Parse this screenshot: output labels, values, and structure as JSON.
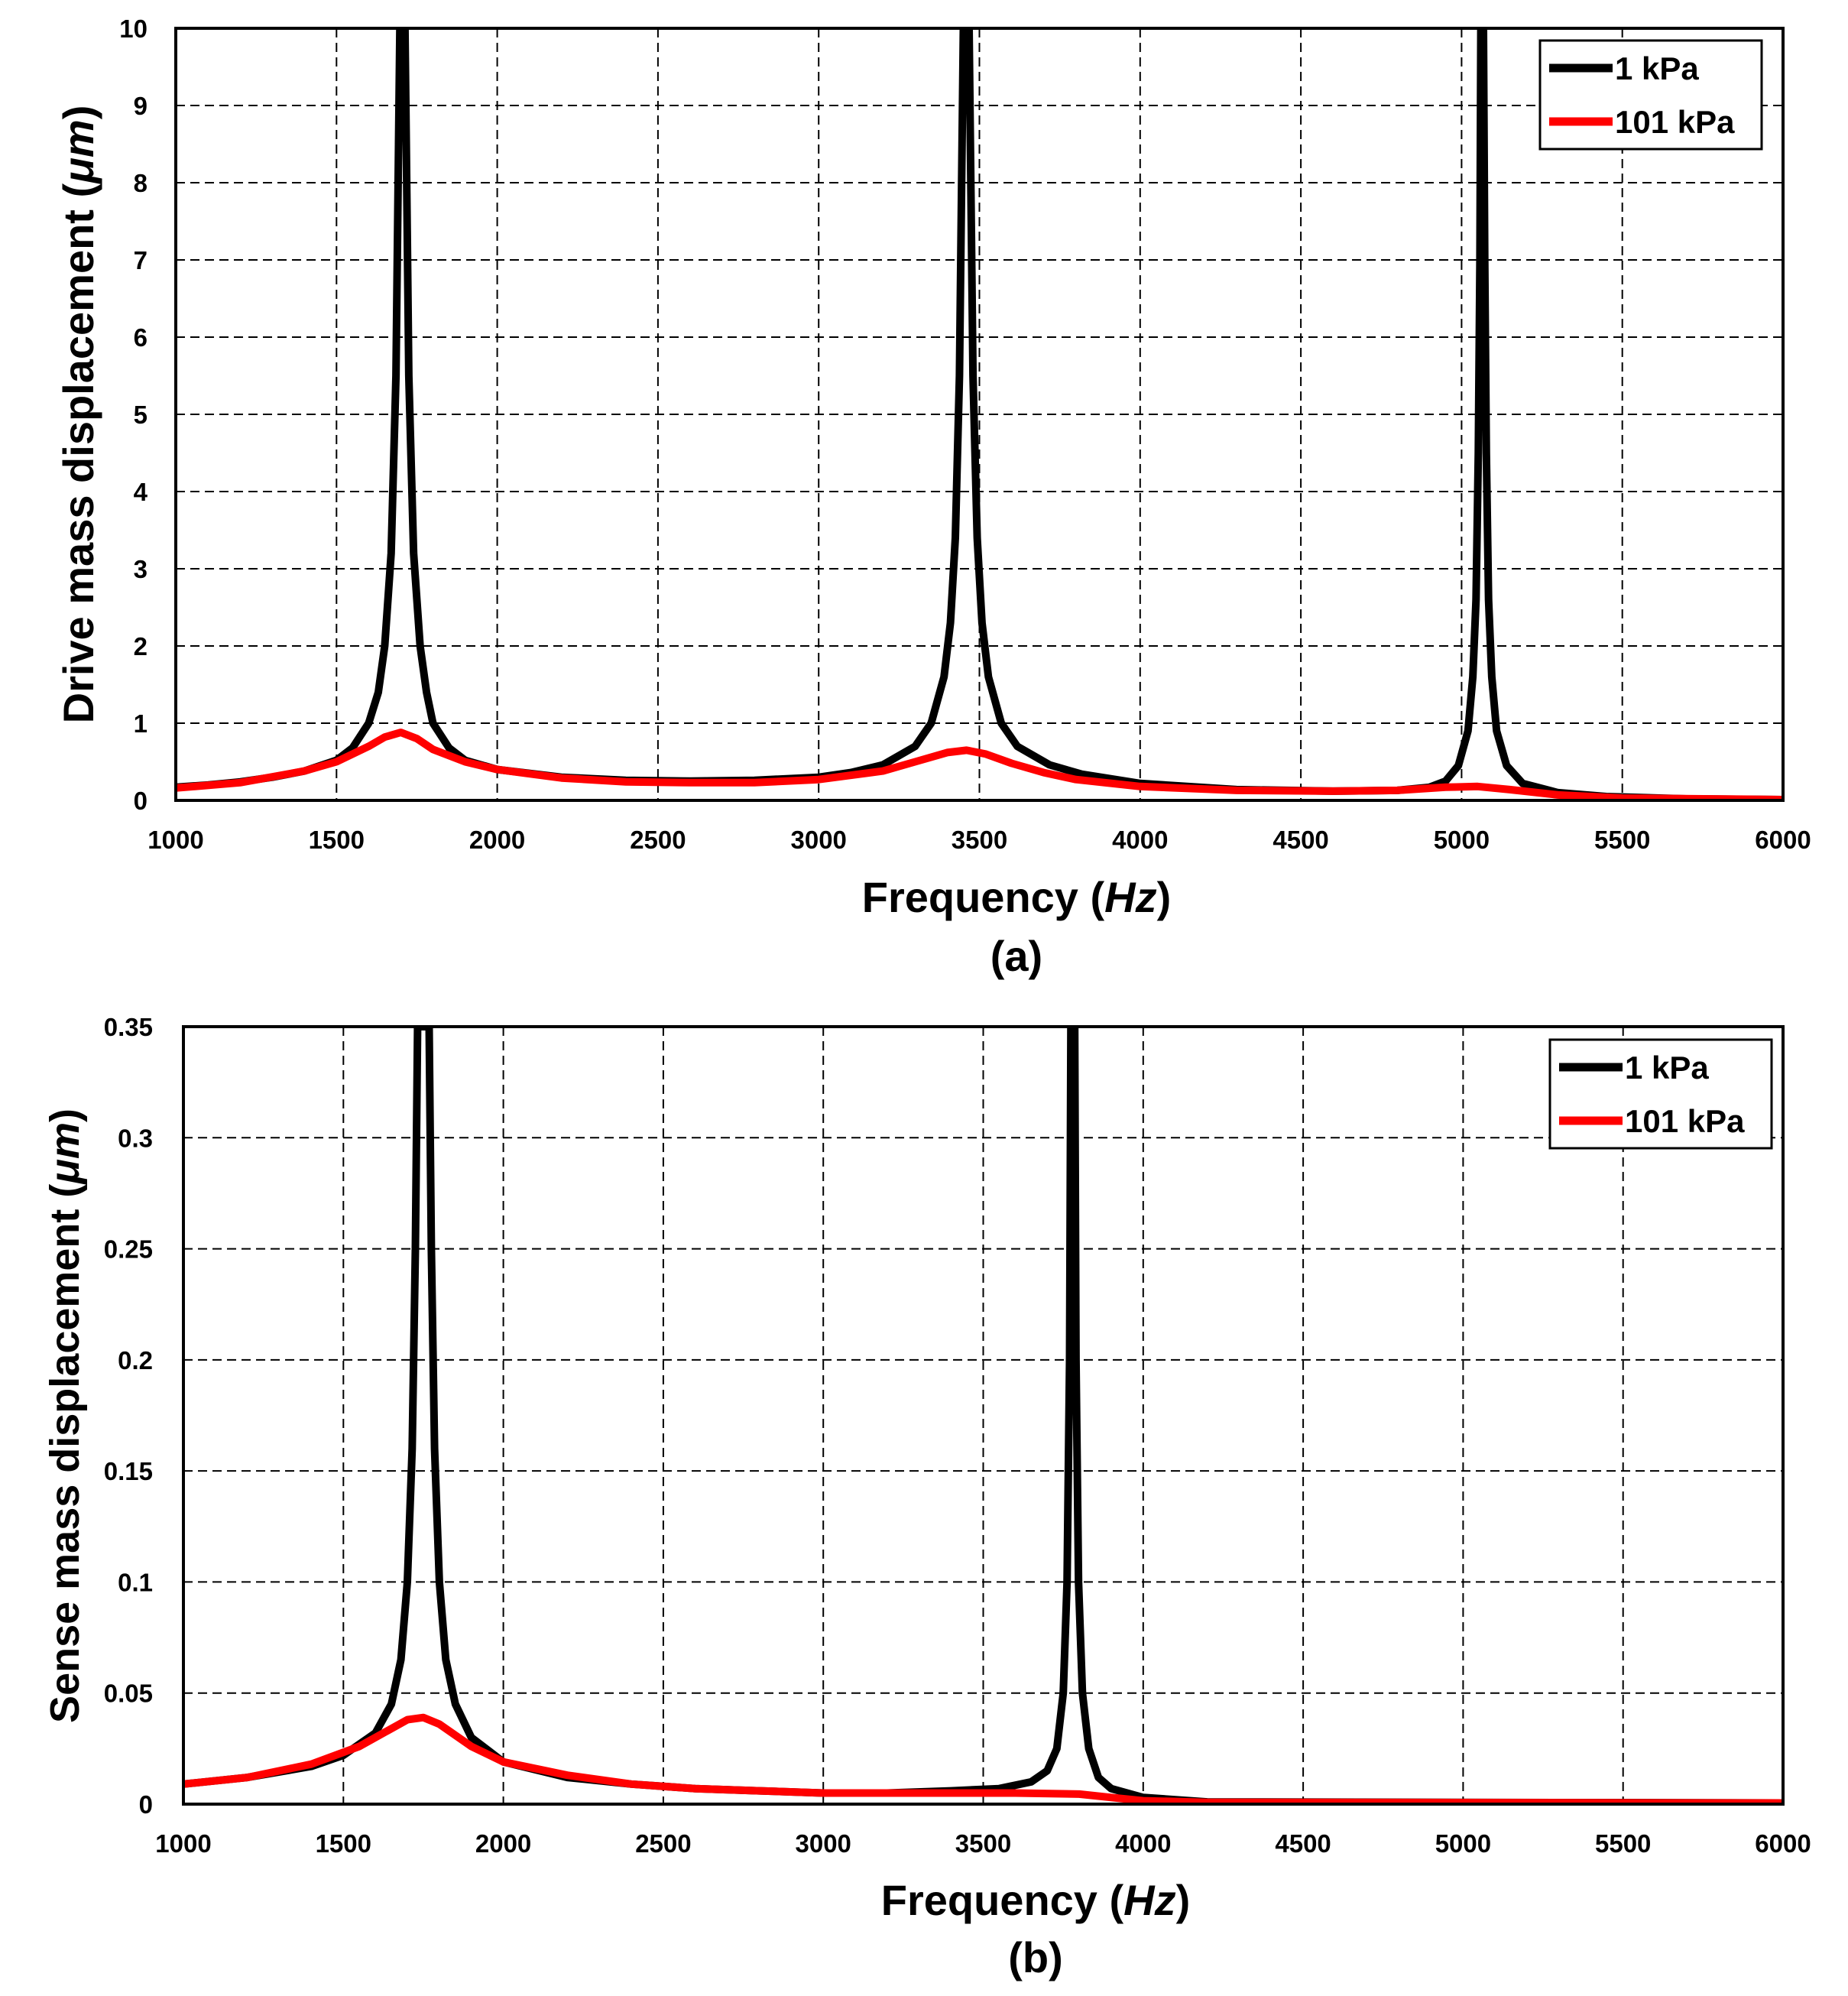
{
  "colors": {
    "series_1kpa": "#000000",
    "series_101kpa": "#ff0000",
    "grid": "#000000"
  },
  "chart_data": [
    {
      "type": "line",
      "id": "a",
      "caption": "(a)",
      "title": "",
      "xlabel_prefix": "Frequency (",
      "xlabel_unit": "Hz",
      "xlabel_suffix": ")",
      "ylabel_prefix": "Drive mass displacement (",
      "ylabel_unit": "μm",
      "ylabel_suffix": ")",
      "xlim": [
        1000,
        6000
      ],
      "ylim": [
        0,
        10
      ],
      "xticks": [
        1000,
        1500,
        2000,
        2500,
        3000,
        3500,
        4000,
        4500,
        5000,
        5500,
        6000
      ],
      "yticks": [
        0,
        1,
        2,
        3,
        4,
        5,
        6,
        7,
        8,
        9,
        10
      ],
      "ytick_labels": [
        "0",
        "1",
        "2",
        "3",
        "4",
        "5",
        "6",
        "7",
        "8",
        "9",
        "10"
      ],
      "grid": true,
      "legend_position": "top-right",
      "series": [
        {
          "name": "1 kPa",
          "color": "#000000",
          "points": [
            [
              1000,
              0.17
            ],
            [
              1100,
              0.2
            ],
            [
              1200,
              0.24
            ],
            [
              1300,
              0.3
            ],
            [
              1400,
              0.38
            ],
            [
              1500,
              0.52
            ],
            [
              1550,
              0.68
            ],
            [
              1600,
              1.0
            ],
            [
              1630,
              1.4
            ],
            [
              1650,
              2.0
            ],
            [
              1670,
              3.2
            ],
            [
              1685,
              5.5
            ],
            [
              1693,
              8.5
            ],
            [
              1697,
              10.0
            ],
            [
              1713,
              10.0
            ],
            [
              1717,
              8.5
            ],
            [
              1725,
              5.5
            ],
            [
              1740,
              3.2
            ],
            [
              1760,
              2.0
            ],
            [
              1780,
              1.4
            ],
            [
              1800,
              1.0
            ],
            [
              1850,
              0.68
            ],
            [
              1900,
              0.52
            ],
            [
              2000,
              0.4
            ],
            [
              2200,
              0.3
            ],
            [
              2400,
              0.26
            ],
            [
              2600,
              0.25
            ],
            [
              2800,
              0.26
            ],
            [
              3000,
              0.3
            ],
            [
              3100,
              0.36
            ],
            [
              3200,
              0.46
            ],
            [
              3300,
              0.7
            ],
            [
              3350,
              1.0
            ],
            [
              3390,
              1.6
            ],
            [
              3410,
              2.3
            ],
            [
              3425,
              3.4
            ],
            [
              3438,
              5.5
            ],
            [
              3446,
              8.5
            ],
            [
              3450,
              10.0
            ],
            [
              3468,
              10.0
            ],
            [
              3472,
              8.5
            ],
            [
              3480,
              5.5
            ],
            [
              3493,
              3.4
            ],
            [
              3508,
              2.3
            ],
            [
              3528,
              1.6
            ],
            [
              3568,
              1.0
            ],
            [
              3618,
              0.7
            ],
            [
              3718,
              0.46
            ],
            [
              3818,
              0.34
            ],
            [
              4000,
              0.22
            ],
            [
              4300,
              0.14
            ],
            [
              4600,
              0.12
            ],
            [
              4800,
              0.13
            ],
            [
              4900,
              0.17
            ],
            [
              4950,
              0.25
            ],
            [
              4990,
              0.45
            ],
            [
              5020,
              0.9
            ],
            [
              5035,
              1.6
            ],
            [
              5045,
              2.6
            ],
            [
              5052,
              4.5
            ],
            [
              5057,
              7.0
            ],
            [
              5060,
              10.0
            ],
            [
              5068,
              10.0
            ],
            [
              5072,
              7.0
            ],
            [
              5077,
              4.5
            ],
            [
              5084,
              2.6
            ],
            [
              5094,
              1.6
            ],
            [
              5109,
              0.9
            ],
            [
              5140,
              0.45
            ],
            [
              5190,
              0.22
            ],
            [
              5300,
              0.1
            ],
            [
              5450,
              0.05
            ],
            [
              5700,
              0.02
            ],
            [
              6000,
              0.01
            ]
          ]
        },
        {
          "name": "101 kPa",
          "color": "#ff0000",
          "points": [
            [
              1000,
              0.16
            ],
            [
              1200,
              0.23
            ],
            [
              1400,
              0.38
            ],
            [
              1500,
              0.5
            ],
            [
              1600,
              0.7
            ],
            [
              1650,
              0.82
            ],
            [
              1700,
              0.88
            ],
            [
              1750,
              0.8
            ],
            [
              1800,
              0.66
            ],
            [
              1900,
              0.5
            ],
            [
              2000,
              0.4
            ],
            [
              2200,
              0.29
            ],
            [
              2400,
              0.24
            ],
            [
              2600,
              0.23
            ],
            [
              2800,
              0.23
            ],
            [
              3000,
              0.27
            ],
            [
              3200,
              0.38
            ],
            [
              3300,
              0.5
            ],
            [
              3400,
              0.62
            ],
            [
              3460,
              0.65
            ],
            [
              3520,
              0.6
            ],
            [
              3600,
              0.48
            ],
            [
              3700,
              0.36
            ],
            [
              3800,
              0.27
            ],
            [
              4000,
              0.18
            ],
            [
              4300,
              0.13
            ],
            [
              4600,
              0.12
            ],
            [
              4800,
              0.13
            ],
            [
              4950,
              0.17
            ],
            [
              5050,
              0.18
            ],
            [
              5150,
              0.14
            ],
            [
              5300,
              0.07
            ],
            [
              5500,
              0.03
            ],
            [
              6000,
              0.01
            ]
          ]
        }
      ]
    },
    {
      "type": "line",
      "id": "b",
      "caption": "(b)",
      "title": "",
      "xlabel_prefix": "Frequency (",
      "xlabel_unit": "Hz",
      "xlabel_suffix": ")",
      "ylabel_prefix": "Sense mass displacement (",
      "ylabel_unit": "μm",
      "ylabel_suffix": ")",
      "xlim": [
        1000,
        6000
      ],
      "ylim": [
        0,
        0.35
      ],
      "xticks": [
        1000,
        1500,
        2000,
        2500,
        3000,
        3500,
        4000,
        4500,
        5000,
        5500,
        6000
      ],
      "yticks": [
        0,
        0.05,
        0.1,
        0.15,
        0.2,
        0.25,
        0.3,
        0.35
      ],
      "ytick_labels": [
        "0",
        "0.05",
        "0.1",
        "0.15",
        "0.2",
        "0.25",
        "0.3",
        "0.35"
      ],
      "grid": true,
      "legend_position": "top-right",
      "series": [
        {
          "name": "1 kPa",
          "color": "#000000",
          "points": [
            [
              1000,
              0.009
            ],
            [
              1200,
              0.012
            ],
            [
              1400,
              0.017
            ],
            [
              1500,
              0.022
            ],
            [
              1600,
              0.032
            ],
            [
              1650,
              0.045
            ],
            [
              1680,
              0.065
            ],
            [
              1700,
              0.1
            ],
            [
              1715,
              0.16
            ],
            [
              1725,
              0.25
            ],
            [
              1732,
              0.35
            ],
            [
              1768,
              0.35
            ],
            [
              1775,
              0.25
            ],
            [
              1785,
              0.16
            ],
            [
              1800,
              0.1
            ],
            [
              1820,
              0.065
            ],
            [
              1850,
              0.045
            ],
            [
              1900,
              0.03
            ],
            [
              2000,
              0.019
            ],
            [
              2200,
              0.012
            ],
            [
              2400,
              0.009
            ],
            [
              2600,
              0.007
            ],
            [
              2800,
              0.006
            ],
            [
              3000,
              0.005
            ],
            [
              3200,
              0.005
            ],
            [
              3400,
              0.006
            ],
            [
              3550,
              0.007
            ],
            [
              3650,
              0.01
            ],
            [
              3700,
              0.015
            ],
            [
              3730,
              0.025
            ],
            [
              3750,
              0.05
            ],
            [
              3762,
              0.1
            ],
            [
              3770,
              0.2
            ],
            [
              3774,
              0.35
            ],
            [
              3786,
              0.35
            ],
            [
              3790,
              0.2
            ],
            [
              3798,
              0.1
            ],
            [
              3810,
              0.05
            ],
            [
              3830,
              0.025
            ],
            [
              3860,
              0.012
            ],
            [
              3900,
              0.007
            ],
            [
              4000,
              0.003
            ],
            [
              4200,
              0.001
            ],
            [
              6000,
              0.0005
            ]
          ]
        },
        {
          "name": "101 kPa",
          "color": "#ff0000",
          "points": [
            [
              1000,
              0.009
            ],
            [
              1200,
              0.012
            ],
            [
              1400,
              0.018
            ],
            [
              1550,
              0.026
            ],
            [
              1650,
              0.034
            ],
            [
              1700,
              0.038
            ],
            [
              1750,
              0.039
            ],
            [
              1800,
              0.036
            ],
            [
              1900,
              0.026
            ],
            [
              2000,
              0.019
            ],
            [
              2200,
              0.013
            ],
            [
              2400,
              0.009
            ],
            [
              2600,
              0.007
            ],
            [
              2800,
              0.006
            ],
            [
              3000,
              0.005
            ],
            [
              3300,
              0.005
            ],
            [
              3600,
              0.005
            ],
            [
              3800,
              0.0045
            ],
            [
              3900,
              0.003
            ],
            [
              4000,
              0.0015
            ],
            [
              4200,
              0.0008
            ],
            [
              6000,
              0.0005
            ]
          ]
        }
      ]
    }
  ]
}
